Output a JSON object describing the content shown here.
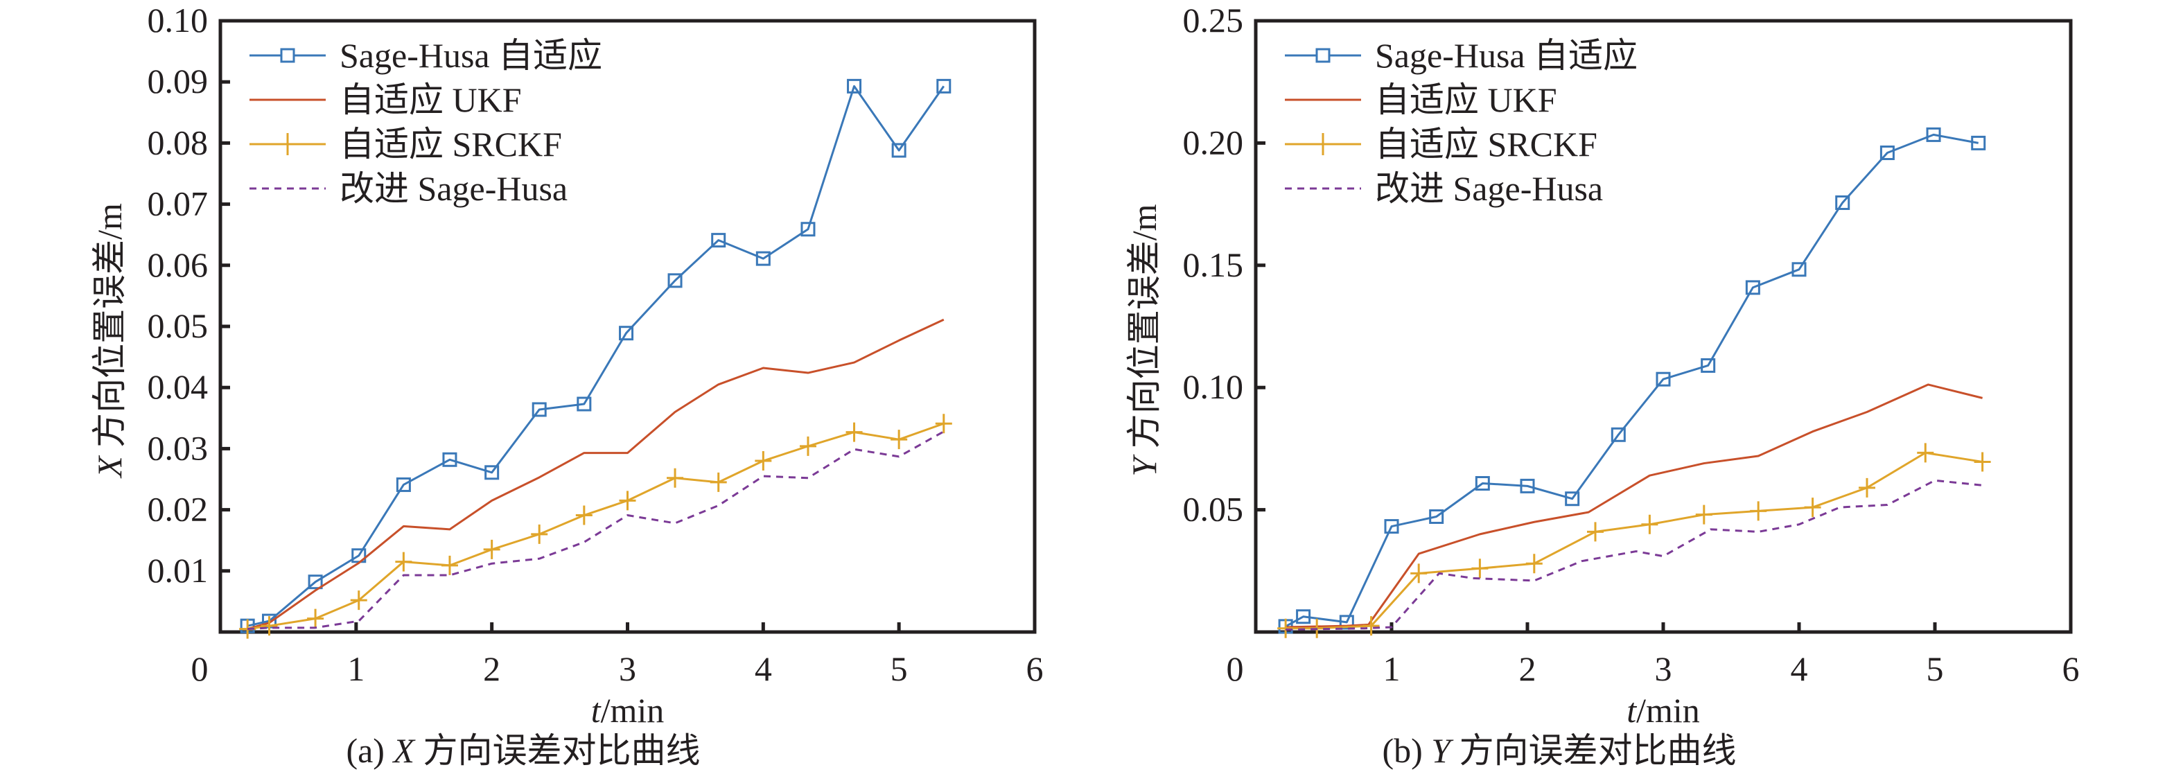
{
  "chart_data": [
    {
      "type": "line",
      "panel": "a",
      "caption": "(a) X 方向误差对比曲线",
      "caption_prefix": "(a) ",
      "caption_var": "X",
      "caption_rest": " 方向误差对比曲线",
      "xlabel_var": "t",
      "xlabel_rest": "/min",
      "ylabel_var": "X",
      "ylabel_rest": " 方向位置误差/m",
      "xlim": [
        0,
        6
      ],
      "ylim": [
        0,
        0.1
      ],
      "xticks": [
        0,
        1,
        2,
        3,
        4,
        5,
        6
      ],
      "xtick_labels": [
        "0",
        "1",
        "2",
        "3",
        "4",
        "5",
        "6"
      ],
      "yticks": [
        0.01,
        0.02,
        0.03,
        0.04,
        0.05,
        0.06,
        0.07,
        0.08,
        0.09,
        0.1
      ],
      "ytick_labels": [
        "0.01",
        "0.02",
        "0.03",
        "0.04",
        "0.05",
        "0.06",
        "0.07",
        "0.08",
        "0.09",
        "0.10"
      ],
      "grid": false,
      "legend_position": "top-left",
      "series": [
        {
          "name": "Sage-Husa 自适应",
          "color": "#3a78b8",
          "marker": "square",
          "dash": "solid",
          "x": [
            0.2,
            0.36,
            0.7,
            1.02,
            1.35,
            1.69,
            2.0,
            2.35,
            2.68,
            2.99,
            3.35,
            3.67,
            4.0,
            4.33,
            4.67,
            5.0,
            5.33
          ],
          "y": [
            0.001,
            0.0018,
            0.0082,
            0.0125,
            0.0241,
            0.0282,
            0.0261,
            0.0364,
            0.0373,
            0.0489,
            0.0575,
            0.0641,
            0.0611,
            0.0659,
            0.0893,
            0.0788,
            0.0893
          ]
        },
        {
          "name": "自适应 UKF",
          "color": "#c8502a",
          "marker": "none",
          "dash": "solid",
          "x": [
            0.2,
            0.36,
            0.7,
            1.02,
            1.35,
            1.69,
            2.0,
            2.35,
            2.68,
            3.0,
            3.35,
            3.67,
            4.0,
            4.33,
            4.67,
            5.0,
            5.33
          ],
          "y": [
            0.0005,
            0.0015,
            0.0068,
            0.0113,
            0.0173,
            0.0168,
            0.0215,
            0.0253,
            0.0293,
            0.0293,
            0.036,
            0.0405,
            0.0432,
            0.0424,
            0.0441,
            0.0477,
            0.0511
          ]
        },
        {
          "name": "自适应 SRCKF",
          "color": "#e0a52a",
          "marker": "plus",
          "dash": "solid",
          "x": [
            0.2,
            0.36,
            0.7,
            1.02,
            1.35,
            1.69,
            2.0,
            2.35,
            2.68,
            3.0,
            3.35,
            3.67,
            4.0,
            4.33,
            4.67,
            5.0,
            5.33
          ],
          "y": [
            0.0005,
            0.001,
            0.0022,
            0.0052,
            0.0115,
            0.0109,
            0.0135,
            0.016,
            0.0191,
            0.0215,
            0.0252,
            0.0245,
            0.028,
            0.0304,
            0.0327,
            0.0315,
            0.0341
          ]
        },
        {
          "name": "改进 Sage-Husa",
          "color": "#7b3a96",
          "marker": "none",
          "dash": "dashed",
          "x": [
            0.2,
            0.36,
            0.7,
            1.02,
            1.35,
            1.69,
            2.0,
            2.35,
            2.68,
            3.0,
            3.35,
            3.67,
            4.0,
            4.33,
            4.67,
            5.0,
            5.33
          ],
          "y": [
            0.0005,
            0.0007,
            0.0007,
            0.0018,
            0.0093,
            0.0093,
            0.0112,
            0.012,
            0.0147,
            0.0191,
            0.0178,
            0.0207,
            0.0255,
            0.0252,
            0.0299,
            0.0287,
            0.0328
          ]
        }
      ]
    },
    {
      "type": "line",
      "panel": "b",
      "caption": "(b) Y 方向误差对比曲线",
      "caption_prefix": "(b) ",
      "caption_var": "Y",
      "caption_rest": " 方向误差对比曲线",
      "xlabel_var": "t",
      "xlabel_rest": "/min",
      "ylabel_var": "Y",
      "ylabel_rest": " 方向位置误差/m",
      "xlim": [
        0,
        6
      ],
      "ylim": [
        0,
        0.25
      ],
      "xticks": [
        0,
        1,
        2,
        3,
        4,
        5,
        6
      ],
      "xtick_labels": [
        "0",
        "1",
        "2",
        "3",
        "4",
        "5",
        "6"
      ],
      "yticks": [
        0.05,
        0.1,
        0.15,
        0.2,
        0.25
      ],
      "ytick_labels": [
        "0.05",
        "0.10",
        "0.15",
        "0.20",
        "0.25"
      ],
      "grid": false,
      "legend_position": "top-left",
      "series": [
        {
          "name": "Sage-Husa 自适应",
          "color": "#3a78b8",
          "marker": "square",
          "dash": "solid",
          "x": [
            0.22,
            0.35,
            0.67,
            1.0,
            1.33,
            1.67,
            2.0,
            2.33,
            2.67,
            3.0,
            3.33,
            3.66,
            4.0,
            4.32,
            4.65,
            4.99,
            5.32
          ],
          "y": [
            0.0023,
            0.0063,
            0.004,
            0.0432,
            0.0472,
            0.0608,
            0.0597,
            0.0545,
            0.0807,
            0.1034,
            0.109,
            0.1409,
            0.1483,
            0.1756,
            0.196,
            0.2034,
            0.2
          ]
        },
        {
          "name": "自适应 UKF",
          "color": "#c8502a",
          "marker": "none",
          "dash": "solid",
          "x": [
            0.22,
            0.67,
            0.83,
            1.2,
            1.65,
            2.05,
            2.45,
            2.9,
            3.3,
            3.7,
            4.1,
            4.5,
            4.95,
            5.35
          ],
          "y": [
            0.002,
            0.0025,
            0.003,
            0.032,
            0.04,
            0.045,
            0.049,
            0.064,
            0.069,
            0.072,
            0.082,
            0.09,
            0.1012,
            0.0957
          ]
        },
        {
          "name": "自适应 SRCKF",
          "color": "#e0a52a",
          "marker": "plus",
          "dash": "solid",
          "x": [
            0.22,
            0.45,
            0.85,
            1.2,
            1.65,
            2.05,
            2.5,
            2.9,
            3.3,
            3.7,
            4.1,
            4.5,
            4.93,
            5.35
          ],
          "y": [
            0.0015,
            0.0015,
            0.0025,
            0.024,
            0.026,
            0.028,
            0.041,
            0.044,
            0.048,
            0.0495,
            0.051,
            0.059,
            0.0733,
            0.0696
          ]
        },
        {
          "name": "改进 Sage-Husa",
          "color": "#7b3a96",
          "marker": "none",
          "dash": "dashed",
          "x": [
            0.22,
            0.8,
            1.0,
            1.35,
            1.6,
            2.05,
            2.4,
            2.8,
            3.0,
            3.35,
            3.7,
            4.0,
            4.3,
            4.65,
            5.0,
            5.35
          ],
          "y": [
            0.001,
            0.0015,
            0.002,
            0.024,
            0.022,
            0.021,
            0.029,
            0.033,
            0.031,
            0.042,
            0.041,
            0.044,
            0.051,
            0.052,
            0.062,
            0.06
          ]
        }
      ]
    }
  ]
}
